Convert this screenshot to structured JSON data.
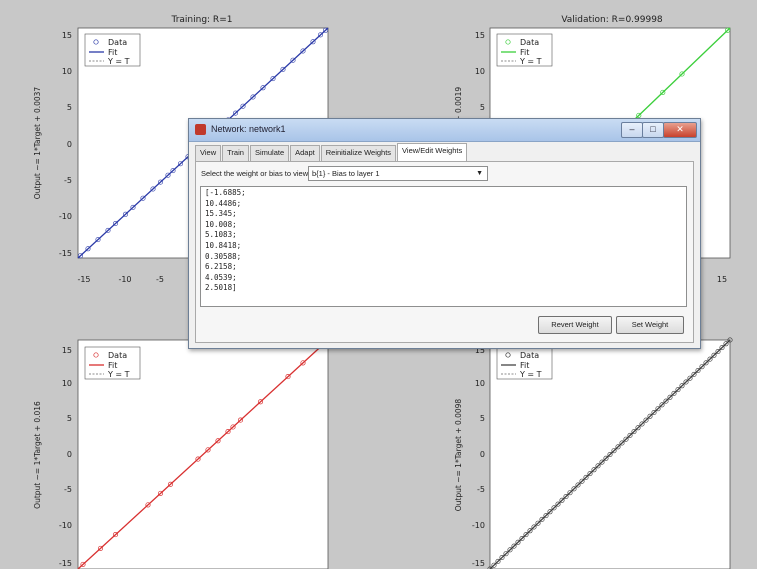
{
  "panels": [
    {
      "id": "tl",
      "title": "Training: R=1",
      "ylabel": "Output ~= 1*Target + 0.0037",
      "fit_color": "#2b3aa8",
      "legend": [
        "Data",
        "Fit",
        "Y = T"
      ],
      "xticks": [
        "-15",
        "-10",
        "-5"
      ],
      "yticks": [
        "15",
        "10",
        "5",
        "0",
        "-5",
        "-10",
        "-15"
      ]
    },
    {
      "id": "tr",
      "title": "Validation: R=0.99998",
      "ylabel": "Output ~= 1*Target + 0.0019",
      "fit_color": "#3ccf3c",
      "legend": [
        "Data",
        "Fit",
        "Y = T"
      ],
      "xticks": [
        "15"
      ],
      "yticks": [
        "15",
        "10",
        "5"
      ]
    },
    {
      "id": "bl",
      "title": "",
      "ylabel": "Output ~= 1*Target + 0.016",
      "fit_color": "#d93030",
      "legend": [
        "Data",
        "Fit",
        "Y = T"
      ],
      "xticks": [],
      "yticks": [
        "15",
        "10",
        "5",
        "0",
        "-5",
        "-10",
        "-15"
      ]
    },
    {
      "id": "br",
      "title": "",
      "ylabel": "Output ~= 1*Target + 0.0098",
      "fit_color": "#444444",
      "legend": [
        "Data",
        "Fit",
        "Y = T"
      ],
      "xticks": [],
      "yticks": [
        "15",
        "10",
        "5",
        "0",
        "-5",
        "-10",
        "-15"
      ]
    }
  ],
  "dialog": {
    "title": "Network: network1",
    "tabs": [
      "View",
      "Train",
      "Simulate",
      "Adapt",
      "Reinitialize Weights",
      "View/Edit Weights"
    ],
    "active_tab": "View/Edit Weights",
    "select_label": "Select the weight or bias to view:",
    "selected_value": "b{1} - Bias to layer 1",
    "weights": [
      "[-1.6885;",
      "10.4486;",
      "15.345;",
      "10.008;",
      "5.1083;",
      "10.8418;",
      "0.30588;",
      "6.2158;",
      "4.0539;",
      "2.5018]"
    ],
    "revert_label": "Revert Weight",
    "set_label": "Set Weight"
  },
  "colors": {
    "background": "#c8c8c8",
    "axes": "#ffffff"
  }
}
